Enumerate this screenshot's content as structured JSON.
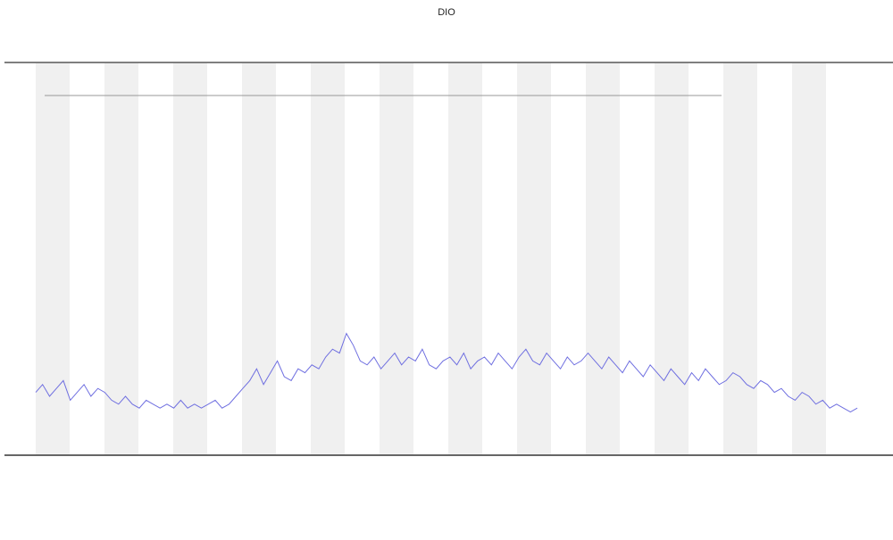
{
  "chart_data": {
    "type": "line",
    "title": "DIO",
    "x": [
      0,
      1,
      2,
      3,
      4,
      5,
      6,
      7,
      8,
      9,
      10,
      11,
      12,
      13,
      14,
      15,
      16,
      17,
      18,
      19,
      20,
      21,
      22,
      23,
      24,
      25,
      26,
      27,
      28,
      29,
      30,
      31,
      32,
      33,
      34,
      35,
      36,
      37,
      38,
      39,
      40,
      41,
      42,
      43,
      44,
      45,
      46,
      47,
      48,
      49,
      50,
      51,
      52,
      53,
      54,
      55,
      56,
      57,
      58,
      59,
      60,
      61,
      62,
      63,
      64,
      65,
      66,
      67,
      68,
      69,
      70,
      71,
      72,
      73,
      74,
      75,
      76,
      77,
      78,
      79,
      80,
      81,
      82,
      83,
      84,
      85,
      86,
      87,
      88,
      89,
      90,
      91,
      92,
      93,
      94,
      95,
      96,
      97,
      98,
      99,
      100,
      101,
      102,
      103,
      104,
      105,
      106,
      107,
      108,
      109,
      110,
      111,
      112,
      113,
      114,
      115,
      116,
      117,
      118,
      119
    ],
    "xlim": [
      0,
      119
    ],
    "ylim": [
      0,
      100
    ],
    "color": "#6f6fe0",
    "values": [
      16,
      18,
      15,
      17,
      19,
      14,
      16,
      18,
      15,
      17,
      16,
      14,
      13,
      15,
      13,
      12,
      14,
      13,
      12,
      13,
      12,
      14,
      12,
      13,
      12,
      13,
      14,
      12,
      13,
      15,
      17,
      19,
      22,
      18,
      21,
      24,
      20,
      19,
      22,
      21,
      23,
      22,
      25,
      27,
      26,
      31,
      28,
      24,
      23,
      25,
      22,
      24,
      26,
      23,
      25,
      24,
      27,
      23,
      22,
      24,
      25,
      23,
      26,
      22,
      24,
      25,
      23,
      26,
      24,
      22,
      25,
      27,
      24,
      23,
      26,
      24,
      22,
      25,
      23,
      24,
      26,
      24,
      22,
      25,
      23,
      21,
      24,
      22,
      20,
      23,
      21,
      19,
      22,
      20,
      18,
      21,
      19,
      22,
      20,
      18,
      19,
      21,
      20,
      18,
      17,
      19,
      18,
      16,
      17,
      15,
      14,
      16,
      15,
      13,
      14,
      12,
      13,
      12,
      11,
      12
    ]
  }
}
